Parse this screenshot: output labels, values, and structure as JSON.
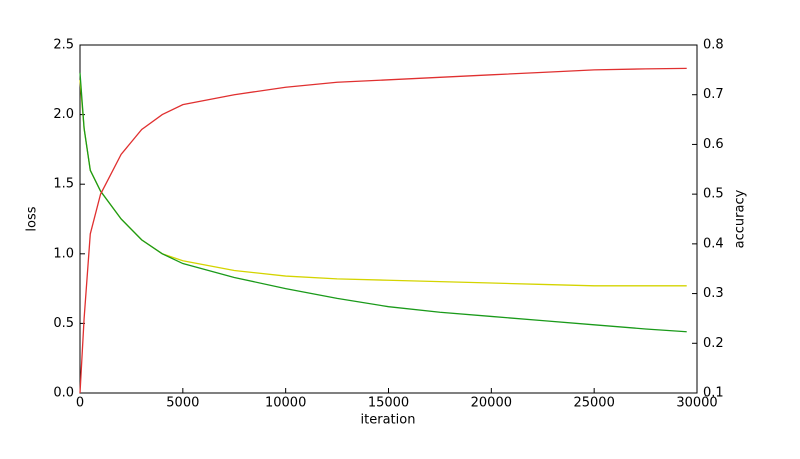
{
  "chart_data": {
    "type": "line",
    "x_label": "iteration",
    "y_label": "loss",
    "y2_label": "accuracy",
    "x": [
      0,
      200,
      500,
      1000,
      2000,
      3000,
      4000,
      5000,
      7500,
      10000,
      12500,
      15000,
      17500,
      20000,
      22500,
      25000,
      27500,
      29500
    ],
    "series": [
      {
        "color": "#d4d400",
        "values": [
          2.25,
          1.9,
          1.6,
          1.45,
          1.25,
          1.1,
          1.0,
          0.95,
          0.88,
          0.84,
          0.82,
          0.81,
          0.8,
          0.79,
          0.78,
          0.77,
          0.77,
          0.77
        ]
      },
      {
        "color": "#1a9a1a",
        "values": [
          2.3,
          1.9,
          1.6,
          1.45,
          1.25,
          1.1,
          1.0,
          0.93,
          0.83,
          0.75,
          0.68,
          0.62,
          0.58,
          0.55,
          0.52,
          0.49,
          0.46,
          0.44
        ]
      },
      {
        "color": "#e03030",
        "axis": "y2",
        "values": [
          0.1,
          0.25,
          0.42,
          0.5,
          0.58,
          0.63,
          0.66,
          0.68,
          0.7,
          0.715,
          0.725,
          0.73,
          0.735,
          0.74,
          0.745,
          0.75,
          0.752,
          0.753
        ]
      }
    ],
    "xlim": [
      0,
      30000
    ],
    "xticks": [
      0,
      5000,
      10000,
      15000,
      20000,
      25000,
      30000
    ],
    "ylim": [
      0,
      2.5
    ],
    "yticks": [
      {
        "value": 0,
        "label": "0.0"
      },
      0.5,
      {
        "value": 1,
        "label": "1.0"
      },
      1.5,
      {
        "value": 2,
        "label": "2.0"
      },
      2.5
    ],
    "y2lim": [
      0.1,
      0.8
    ],
    "y2ticks": [
      0.1,
      0.2,
      0.3,
      0.4,
      0.5,
      0.6,
      0.7,
      0.8
    ]
  }
}
